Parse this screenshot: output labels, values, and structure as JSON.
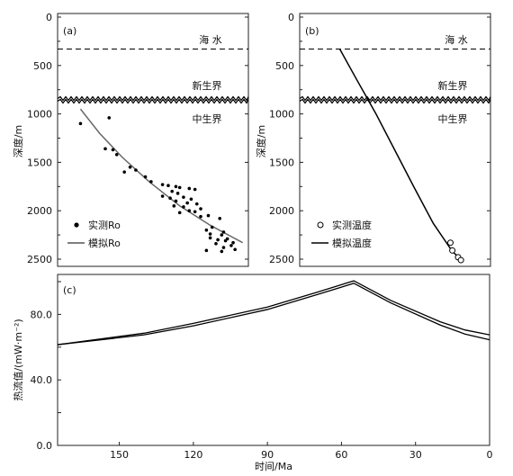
{
  "chart_data": [
    {
      "type": "scatter",
      "panel_label": "(a)",
      "ylabel": "深度/m",
      "y_ticks": [
        "0",
        "500",
        "1000",
        "1500",
        "2000",
        "2500"
      ],
      "ylim": [
        0,
        2500
      ],
      "y_inverted": true,
      "zones": {
        "sea": "海 水",
        "cenozoic": "新生界",
        "mesozoic": "中生界"
      },
      "sea_bottom_depth": 330,
      "unconformity_depth": 850,
      "legend": {
        "points_label": "实测Ro",
        "line_label": "模拟Ro",
        "position": "bottom-left"
      },
      "points": [
        [
          0.12,
          1100
        ],
        [
          0.27,
          1040
        ],
        [
          0.25,
          1360
        ],
        [
          0.29,
          1370
        ],
        [
          0.31,
          1420
        ],
        [
          0.38,
          1550
        ],
        [
          0.41,
          1580
        ],
        [
          0.35,
          1600
        ],
        [
          0.46,
          1650
        ],
        [
          0.49,
          1700
        ],
        [
          0.55,
          1730
        ],
        [
          0.58,
          1740
        ],
        [
          0.62,
          1750
        ],
        [
          0.64,
          1760
        ],
        [
          0.69,
          1770
        ],
        [
          0.72,
          1780
        ],
        [
          0.6,
          1800
        ],
        [
          0.63,
          1820
        ],
        [
          0.55,
          1850
        ],
        [
          0.66,
          1860
        ],
        [
          0.59,
          1870
        ],
        [
          0.7,
          1880
        ],
        [
          0.62,
          1900
        ],
        [
          0.68,
          1920
        ],
        [
          0.73,
          1930
        ],
        [
          0.61,
          1950
        ],
        [
          0.66,
          1960
        ],
        [
          0.75,
          1980
        ],
        [
          0.69,
          2000
        ],
        [
          0.72,
          2010
        ],
        [
          0.64,
          2020
        ],
        [
          0.79,
          2050
        ],
        [
          0.75,
          2060
        ],
        [
          0.85,
          2080
        ],
        [
          0.81,
          2170
        ],
        [
          0.78,
          2200
        ],
        [
          0.87,
          2220
        ],
        [
          0.86,
          2250
        ],
        [
          0.8,
          2280
        ],
        [
          0.89,
          2290
        ],
        [
          0.84,
          2300
        ],
        [
          0.83,
          2340
        ],
        [
          0.91,
          2360
        ],
        [
          0.87,
          2380
        ],
        [
          0.93,
          2400
        ],
        [
          0.78,
          2410
        ],
        [
          0.86,
          2420
        ],
        [
          0.92,
          2330
        ],
        [
          0.8,
          2240
        ],
        [
          0.88,
          2310
        ]
      ],
      "line": [
        [
          0.12,
          950
        ],
        [
          0.22,
          1200
        ],
        [
          0.34,
          1450
        ],
        [
          0.48,
          1700
        ],
        [
          0.64,
          1950
        ],
        [
          0.8,
          2150
        ],
        [
          0.97,
          2330
        ]
      ]
    },
    {
      "type": "scatter",
      "panel_label": "(b)",
      "ylabel": "深度/m",
      "y_ticks": [
        "0",
        "500",
        "1000",
        "1500",
        "2000",
        "2500"
      ],
      "ylim": [
        0,
        2500
      ],
      "y_inverted": true,
      "zones": {
        "sea": "海 水",
        "cenozoic": "新生界",
        "mesozoic": "中生界"
      },
      "sea_bottom_depth": 330,
      "unconformity_depth": 850,
      "legend": {
        "points_label": "实测温度",
        "line_label": "模拟温度",
        "position": "bottom-left"
      },
      "points": [
        [
          0.79,
          2330
        ],
        [
          0.8,
          2410
        ],
        [
          0.83,
          2480
        ],
        [
          0.845,
          2510
        ]
      ],
      "line": [
        [
          0.21,
          330
        ],
        [
          0.3,
          650
        ],
        [
          0.4,
          1000
        ],
        [
          0.5,
          1380
        ],
        [
          0.6,
          1760
        ],
        [
          0.7,
          2130
        ],
        [
          0.8,
          2420
        ],
        [
          0.85,
          2510
        ]
      ]
    },
    {
      "type": "line",
      "panel_label": "(c)",
      "xlabel": "时间/Ma",
      "ylabel": "热流值/(mW·m⁻²)",
      "x_ticks": [
        150,
        120,
        90,
        60,
        30,
        0
      ],
      "x_ticklabels": [
        "150",
        "120",
        "90",
        "60",
        "30",
        "0"
      ],
      "xlim": [
        175,
        0
      ],
      "x_inverted": true,
      "y_ticks": [
        0,
        20,
        40,
        60,
        80,
        100
      ],
      "y_ticklabels": [
        "0.0",
        "",
        "40.0",
        "",
        "80.0",
        ""
      ],
      "ylim": [
        0,
        100
      ],
      "series": [
        {
          "values": [
            [
              175,
              61.5
            ],
            [
              140,
              68.5
            ],
            [
              120,
              74.5
            ],
            [
              90,
              84.5
            ],
            [
              70,
              93.5
            ],
            [
              55,
              100.5
            ],
            [
              40,
              88.5
            ],
            [
              20,
              75.5
            ],
            [
              10,
              70.5
            ],
            [
              0,
              67.5
            ]
          ]
        },
        {
          "values": [
            [
              175,
              61.5
            ],
            [
              140,
              67.5
            ],
            [
              120,
              73.0
            ],
            [
              90,
              83.0
            ],
            [
              70,
              92.0
            ],
            [
              55,
              99.0
            ],
            [
              40,
              87.0
            ],
            [
              20,
              73.5
            ],
            [
              10,
              68.0
            ],
            [
              0,
              64.5
            ]
          ]
        }
      ]
    }
  ]
}
